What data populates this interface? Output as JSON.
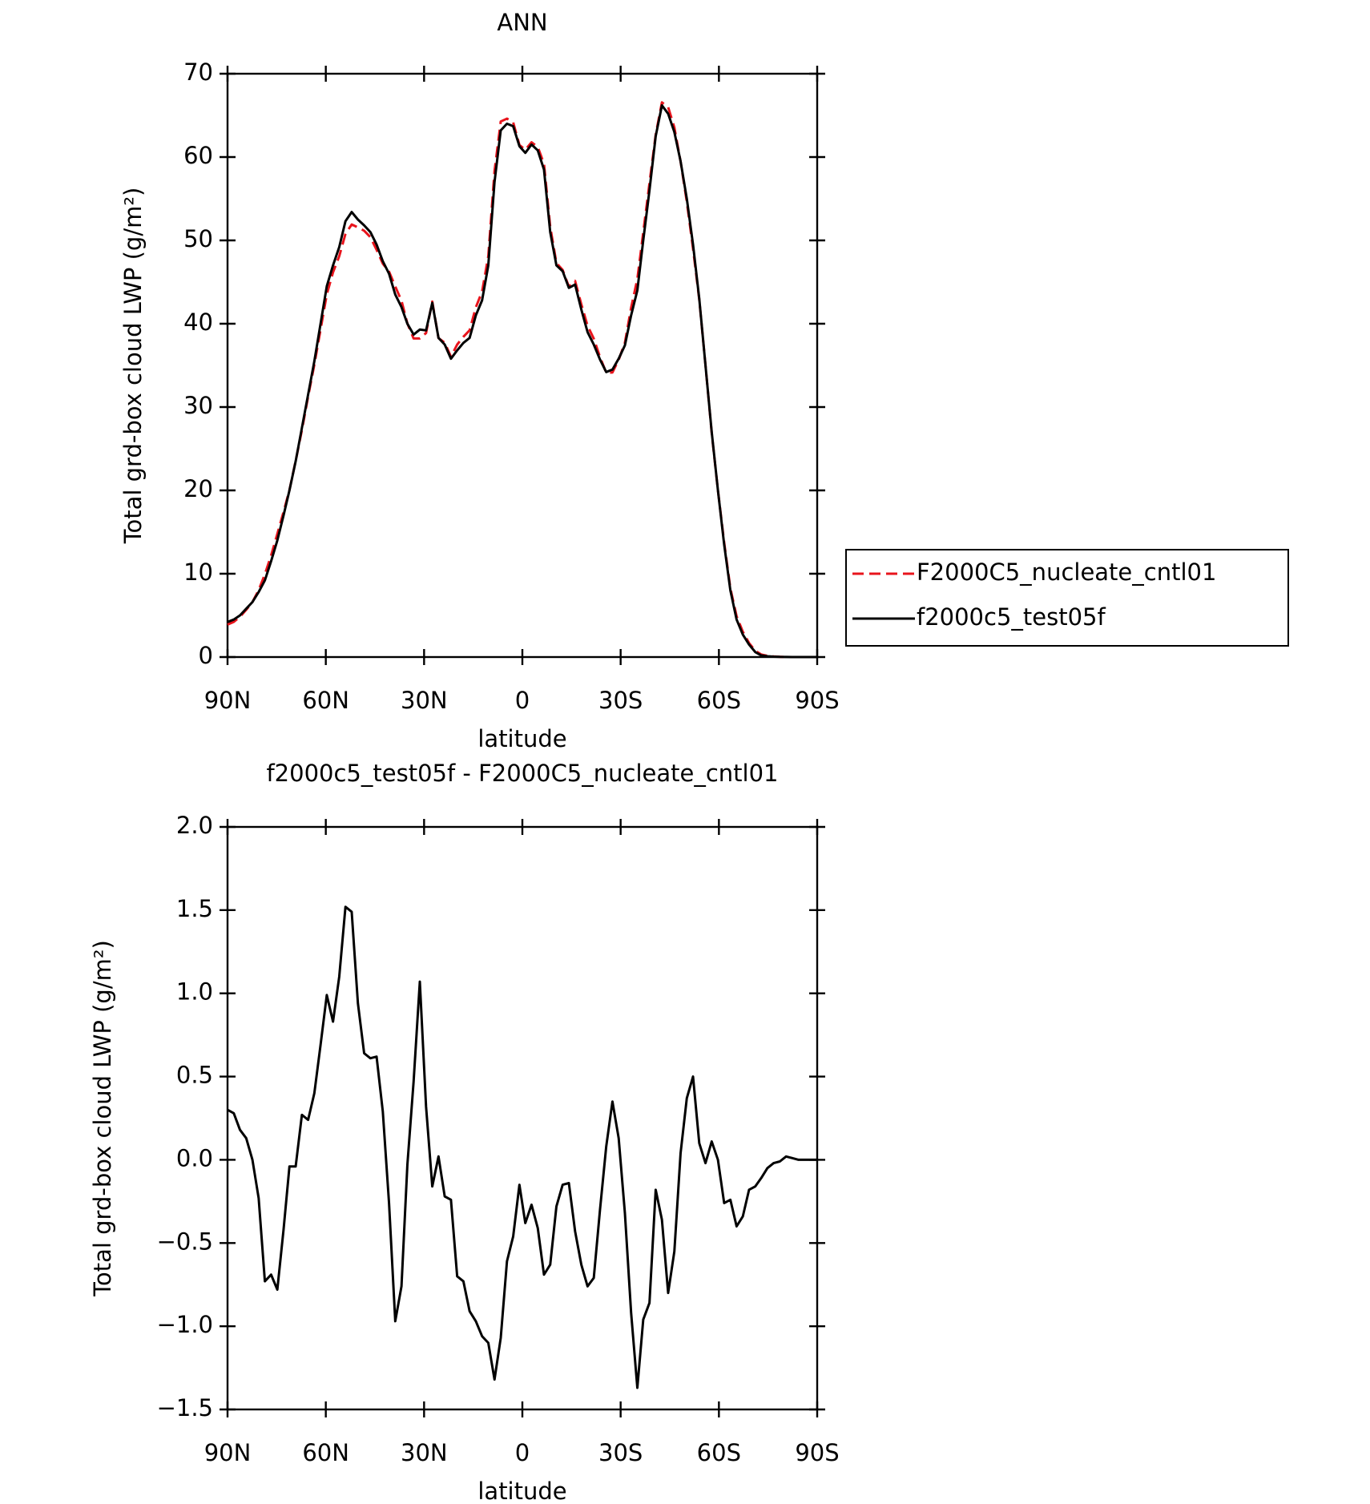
{
  "chart_data": [
    {
      "type": "line",
      "title": "ANN",
      "x_label": "latitude",
      "y_label": "Total grd-box cloud LWP (g/m²)",
      "x": [
        90,
        88.1,
        86.2,
        84.3,
        82.4,
        80.5,
        78.6,
        76.7,
        74.8,
        72.9,
        71.1,
        69.2,
        67.3,
        65.4,
        63.5,
        61.6,
        59.7,
        57.8,
        55.9,
        54,
        52.1,
        50.2,
        48.3,
        46.4,
        44.5,
        42.6,
        40.7,
        38.8,
        36.9,
        35.1,
        33.2,
        31.3,
        29.4,
        27.5,
        25.6,
        23.7,
        21.8,
        19.9,
        18,
        16.1,
        14.2,
        12.3,
        10.4,
        8.5,
        6.6,
        4.7,
        2.8,
        0.9,
        -0.9,
        -2.8,
        -4.7,
        -6.6,
        -8.5,
        -10.4,
        -12.3,
        -14.2,
        -16.1,
        -18,
        -19.9,
        -21.8,
        -23.7,
        -25.6,
        -27.5,
        -29.4,
        -31.3,
        -33.2,
        -35.1,
        -36.9,
        -38.8,
        -40.7,
        -42.6,
        -44.5,
        -46.4,
        -48.3,
        -50.2,
        -52.1,
        -54,
        -55.9,
        -57.8,
        -59.7,
        -61.6,
        -63.5,
        -65.4,
        -67.3,
        -69.2,
        -71.1,
        -72.9,
        -74.8,
        -76.7,
        -78.6,
        -80.5,
        -82.4,
        -84.3,
        -86.2,
        -88.1,
        -90
      ],
      "series": [
        {
          "name": "F2000C5_nucleate_cntl01",
          "color": "#e8141c",
          "dash": true,
          "values": [
            3.9,
            4.22,
            4.82,
            5.67,
            6.6,
            8.03,
            9.93,
            12.19,
            14.78,
            17.42,
            20.04,
            23.54,
            27.23,
            31.26,
            35.1,
            39.31,
            43.51,
            46.17,
            48.1,
            50.78,
            51.91,
            51.56,
            51.16,
            50.39,
            48.88,
            47.21,
            46.26,
            44.47,
            42.76,
            40.03,
            38.23,
            38.23,
            38.88,
            42.66,
            38.28,
            37.72,
            36.04,
            37.5,
            38.43,
            39.21,
            41.97,
            43.86,
            48.1,
            58.32,
            64.27,
            64.61,
            64.16,
            61.45,
            60.88,
            61.77,
            61.21,
            59.19,
            51.63,
            47.28,
            46.45,
            44.44,
            45.13,
            42.33,
            39.76,
            38.21,
            36.0,
            34.12,
            34.15,
            35.67,
            37.72,
            41.92,
            45.37,
            50.96,
            56.86,
            62.68,
            66.56,
            66.0,
            63.55,
            59.46,
            54.63,
            49.0,
            42.9,
            35.02,
            26.89,
            20.0,
            13.76,
            8.24,
            4.9,
            3.04,
            1.68,
            0.76,
            0.31,
            0.15,
            0.07,
            0.03,
            0,
            0,
            0,
            0,
            0,
            0
          ]
        },
        {
          "name": "f2000c5_test05f",
          "color": "#000000",
          "dash": false,
          "values": [
            4.2,
            4.5,
            5.0,
            5.8,
            6.6,
            7.8,
            9.2,
            11.5,
            14,
            17,
            20,
            23.5,
            27.5,
            31.5,
            35.5,
            40,
            44.5,
            47,
            49.2,
            52.3,
            53.4,
            52.5,
            51.8,
            51,
            49.5,
            47.5,
            46,
            43.5,
            42,
            40,
            38.7,
            39.3,
            39.2,
            42.5,
            38.3,
            37.5,
            35.8,
            36.8,
            37.7,
            38.3,
            41,
            42.8,
            47,
            57,
            63.2,
            64,
            63.7,
            61.3,
            60.5,
            61.5,
            60.8,
            58.5,
            51,
            47,
            46.3,
            44.3,
            44.7,
            41.7,
            39,
            37.5,
            35.7,
            34.2,
            34.5,
            35.8,
            37.4,
            41,
            44,
            50,
            56,
            62.5,
            66.2,
            65.2,
            63,
            59.5,
            55,
            49.5,
            43,
            35,
            27,
            20,
            13.5,
            8,
            4.5,
            2.7,
            1.5,
            0.6,
            0.2,
            0.1,
            0.05,
            0.02,
            0.01,
            0,
            0,
            0,
            0,
            0
          ]
        }
      ],
      "xlim": [
        90,
        -90
      ],
      "xticks": [
        {
          "value": 90,
          "label": "90N"
        },
        {
          "value": 60,
          "label": "60N"
        },
        {
          "value": 30,
          "label": "30N"
        },
        0,
        {
          "value": -30,
          "label": "30S"
        },
        {
          "value": -60,
          "label": "60S"
        },
        {
          "value": -90,
          "label": "90S"
        }
      ],
      "ylim": [
        0,
        70
      ],
      "yticks": [
        0,
        10,
        20,
        30,
        40,
        50,
        60,
        70
      ],
      "legend": "right"
    },
    {
      "type": "line",
      "title": "f2000c5_test05f - F2000C5_nucleate_cntl01",
      "x_label": "latitude",
      "y_label": "Total grd-box cloud LWP (g/m²)",
      "x": [
        90,
        88.1,
        86.2,
        84.3,
        82.4,
        80.5,
        78.6,
        76.7,
        74.8,
        72.9,
        71.1,
        69.2,
        67.3,
        65.4,
        63.5,
        61.6,
        59.7,
        57.8,
        55.9,
        54,
        52.1,
        50.2,
        48.3,
        46.4,
        44.5,
        42.6,
        40.7,
        38.8,
        36.9,
        35.1,
        33.2,
        31.3,
        29.4,
        27.5,
        25.6,
        23.7,
        21.8,
        19.9,
        18,
        16.1,
        14.2,
        12.3,
        10.4,
        8.5,
        6.6,
        4.7,
        2.8,
        0.9,
        -0.9,
        -2.8,
        -4.7,
        -6.6,
        -8.5,
        -10.4,
        -12.3,
        -14.2,
        -16.1,
        -18,
        -19.9,
        -21.8,
        -23.7,
        -25.6,
        -27.5,
        -29.4,
        -31.3,
        -33.2,
        -35.1,
        -36.9,
        -38.8,
        -40.7,
        -42.6,
        -44.5,
        -46.4,
        -48.3,
        -50.2,
        -52.1,
        -54,
        -55.9,
        -57.8,
        -59.7,
        -61.6,
        -63.5,
        -65.4,
        -67.3,
        -69.2,
        -71.1,
        -72.9,
        -74.8,
        -76.7,
        -78.6,
        -80.5,
        -82.4,
        -84.3,
        -86.2,
        -88.1,
        -90
      ],
      "values": [
        0.3,
        0.28,
        0.18,
        0.13,
        0.0,
        -0.23,
        -0.73,
        -0.69,
        -0.78,
        -0.42,
        -0.04,
        -0.04,
        0.27,
        0.24,
        0.4,
        0.69,
        0.99,
        0.83,
        1.1,
        1.52,
        1.49,
        0.94,
        0.64,
        0.61,
        0.62,
        0.29,
        -0.26,
        -0.97,
        -0.76,
        -0.03,
        0.47,
        1.07,
        0.32,
        -0.16,
        0.02,
        -0.22,
        -0.24,
        -0.7,
        -0.73,
        -0.91,
        -0.97,
        -1.06,
        -1.1,
        -1.32,
        -1.07,
        -0.61,
        -0.46,
        -0.15,
        -0.38,
        -0.27,
        -0.41,
        -0.69,
        -0.63,
        -0.28,
        -0.15,
        -0.14,
        -0.43,
        -0.63,
        -0.76,
        -0.71,
        -0.3,
        0.08,
        0.35,
        0.13,
        -0.32,
        -0.92,
        -1.37,
        -0.96,
        -0.86,
        -0.18,
        -0.36,
        -0.8,
        -0.55,
        0.04,
        0.37,
        0.5,
        0.1,
        -0.02,
        0.11,
        0.0,
        -0.26,
        -0.24,
        -0.4,
        -0.34,
        -0.18,
        -0.16,
        -0.11,
        -0.05,
        -0.02,
        -0.01,
        0.02,
        0.01,
        0,
        0,
        0,
        0
      ],
      "color": "#000000",
      "xlim": [
        90,
        -90
      ],
      "xticks": [
        {
          "value": 90,
          "label": "90N"
        },
        {
          "value": 60,
          "label": "60N"
        },
        {
          "value": 30,
          "label": "30N"
        },
        0,
        {
          "value": -30,
          "label": "30S"
        },
        {
          "value": -60,
          "label": "60S"
        },
        {
          "value": -90,
          "label": "90S"
        }
      ],
      "ylim": [
        -1.5,
        2.0
      ],
      "yticks": [
        {
          "value": -1.5,
          "label": "−1.5"
        },
        {
          "value": -1.0,
          "label": "−1.0"
        },
        {
          "value": -0.5,
          "label": "−0.5"
        },
        {
          "value": 0,
          "label": "0.0"
        },
        0.5,
        {
          "value": 1.0,
          "label": "1.0"
        },
        1.5,
        {
          "value": 2.0,
          "label": "2.0"
        }
      ]
    }
  ]
}
